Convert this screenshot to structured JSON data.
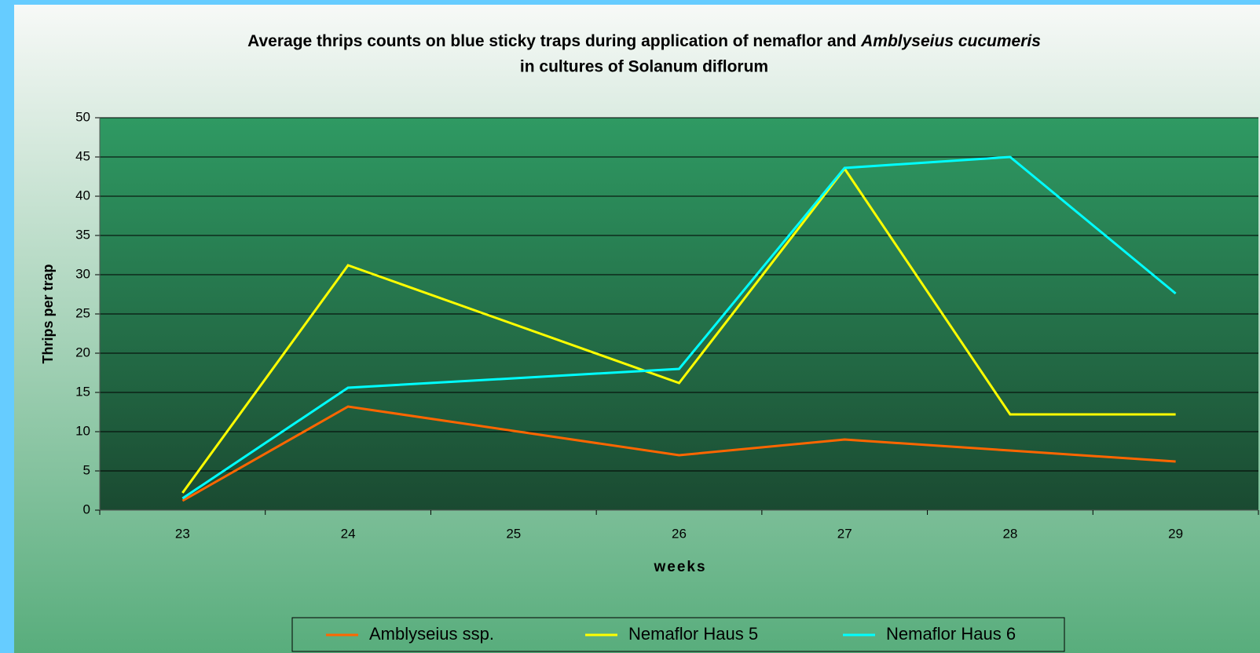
{
  "chart_data": {
    "type": "line",
    "title": [
      "Average thrips counts on blue sticky traps during application of  nemaflor and ",
      "Amblyseius cucumeris",
      "in cultures of Solanum diflorum"
    ],
    "x_label": "weeks",
    "y_label": "Thrips per trap",
    "x": [
      23,
      24,
      26,
      27,
      28,
      29
    ],
    "xlim": [
      22.5,
      29.5
    ],
    "xticks": [
      23,
      24,
      25,
      26,
      27,
      28,
      29
    ],
    "ylim": [
      0,
      50
    ],
    "yticks": [
      0,
      5,
      10,
      15,
      20,
      25,
      30,
      35,
      40,
      45,
      50
    ],
    "grid": true,
    "legend": "bottom",
    "series": [
      {
        "name": "Amblyseius ssp.",
        "color": "#ff6600",
        "values": [
          1.2,
          13.2,
          7.0,
          9.0,
          7.6,
          6.2
        ]
      },
      {
        "name": "Nemaflor Haus 5",
        "color": "#ffff00",
        "values": [
          2.2,
          31.2,
          16.2,
          43.5,
          12.2,
          12.2
        ]
      },
      {
        "name": "Nemaflor Haus 6",
        "color": "#00ffff",
        "values": [
          1.5,
          15.6,
          18.0,
          43.6,
          45.0,
          27.6
        ]
      }
    ]
  }
}
